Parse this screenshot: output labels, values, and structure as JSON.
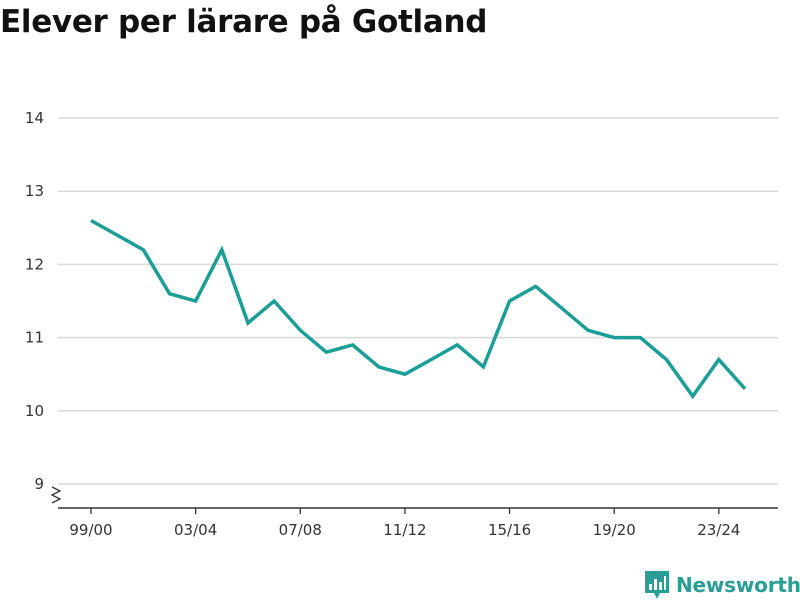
{
  "title": "Elever per lärare på Gotland",
  "brand": {
    "name": "Newsworthy",
    "icon": "newsworthy-logo-icon",
    "color": "#2a9d94"
  },
  "chart_data": {
    "type": "line",
    "title": "Elever per lärare på Gotland",
    "xlabel": "",
    "ylabel": "",
    "x": [
      "99/00",
      "00/01",
      "01/02",
      "02/03",
      "03/04",
      "04/05",
      "05/06",
      "06/07",
      "07/08",
      "08/09",
      "09/10",
      "10/11",
      "11/12",
      "12/13",
      "13/14",
      "14/15",
      "15/16",
      "16/17",
      "17/18",
      "18/19",
      "19/20",
      "20/21",
      "21/22",
      "22/23",
      "23/24",
      "24/25"
    ],
    "x_tick_labels": [
      "99/00",
      "03/04",
      "07/08",
      "11/12",
      "15/16",
      "19/20",
      "23/24"
    ],
    "series": [
      {
        "name": "",
        "color": "#1a9e96",
        "values": [
          12.6,
          12.4,
          12.2,
          11.6,
          11.5,
          12.2,
          11.2,
          11.5,
          11.1,
          10.8,
          10.9,
          10.6,
          10.5,
          10.7,
          10.9,
          10.6,
          11.5,
          11.7,
          11.4,
          11.1,
          11.0,
          11.0,
          10.7,
          10.2,
          10.7,
          10.3
        ]
      }
    ],
    "y_ticks": [
      9,
      10,
      11,
      12,
      13,
      14
    ],
    "ylim": [
      9,
      14
    ],
    "y_axis_break": true,
    "grid": true,
    "legend": "none"
  }
}
